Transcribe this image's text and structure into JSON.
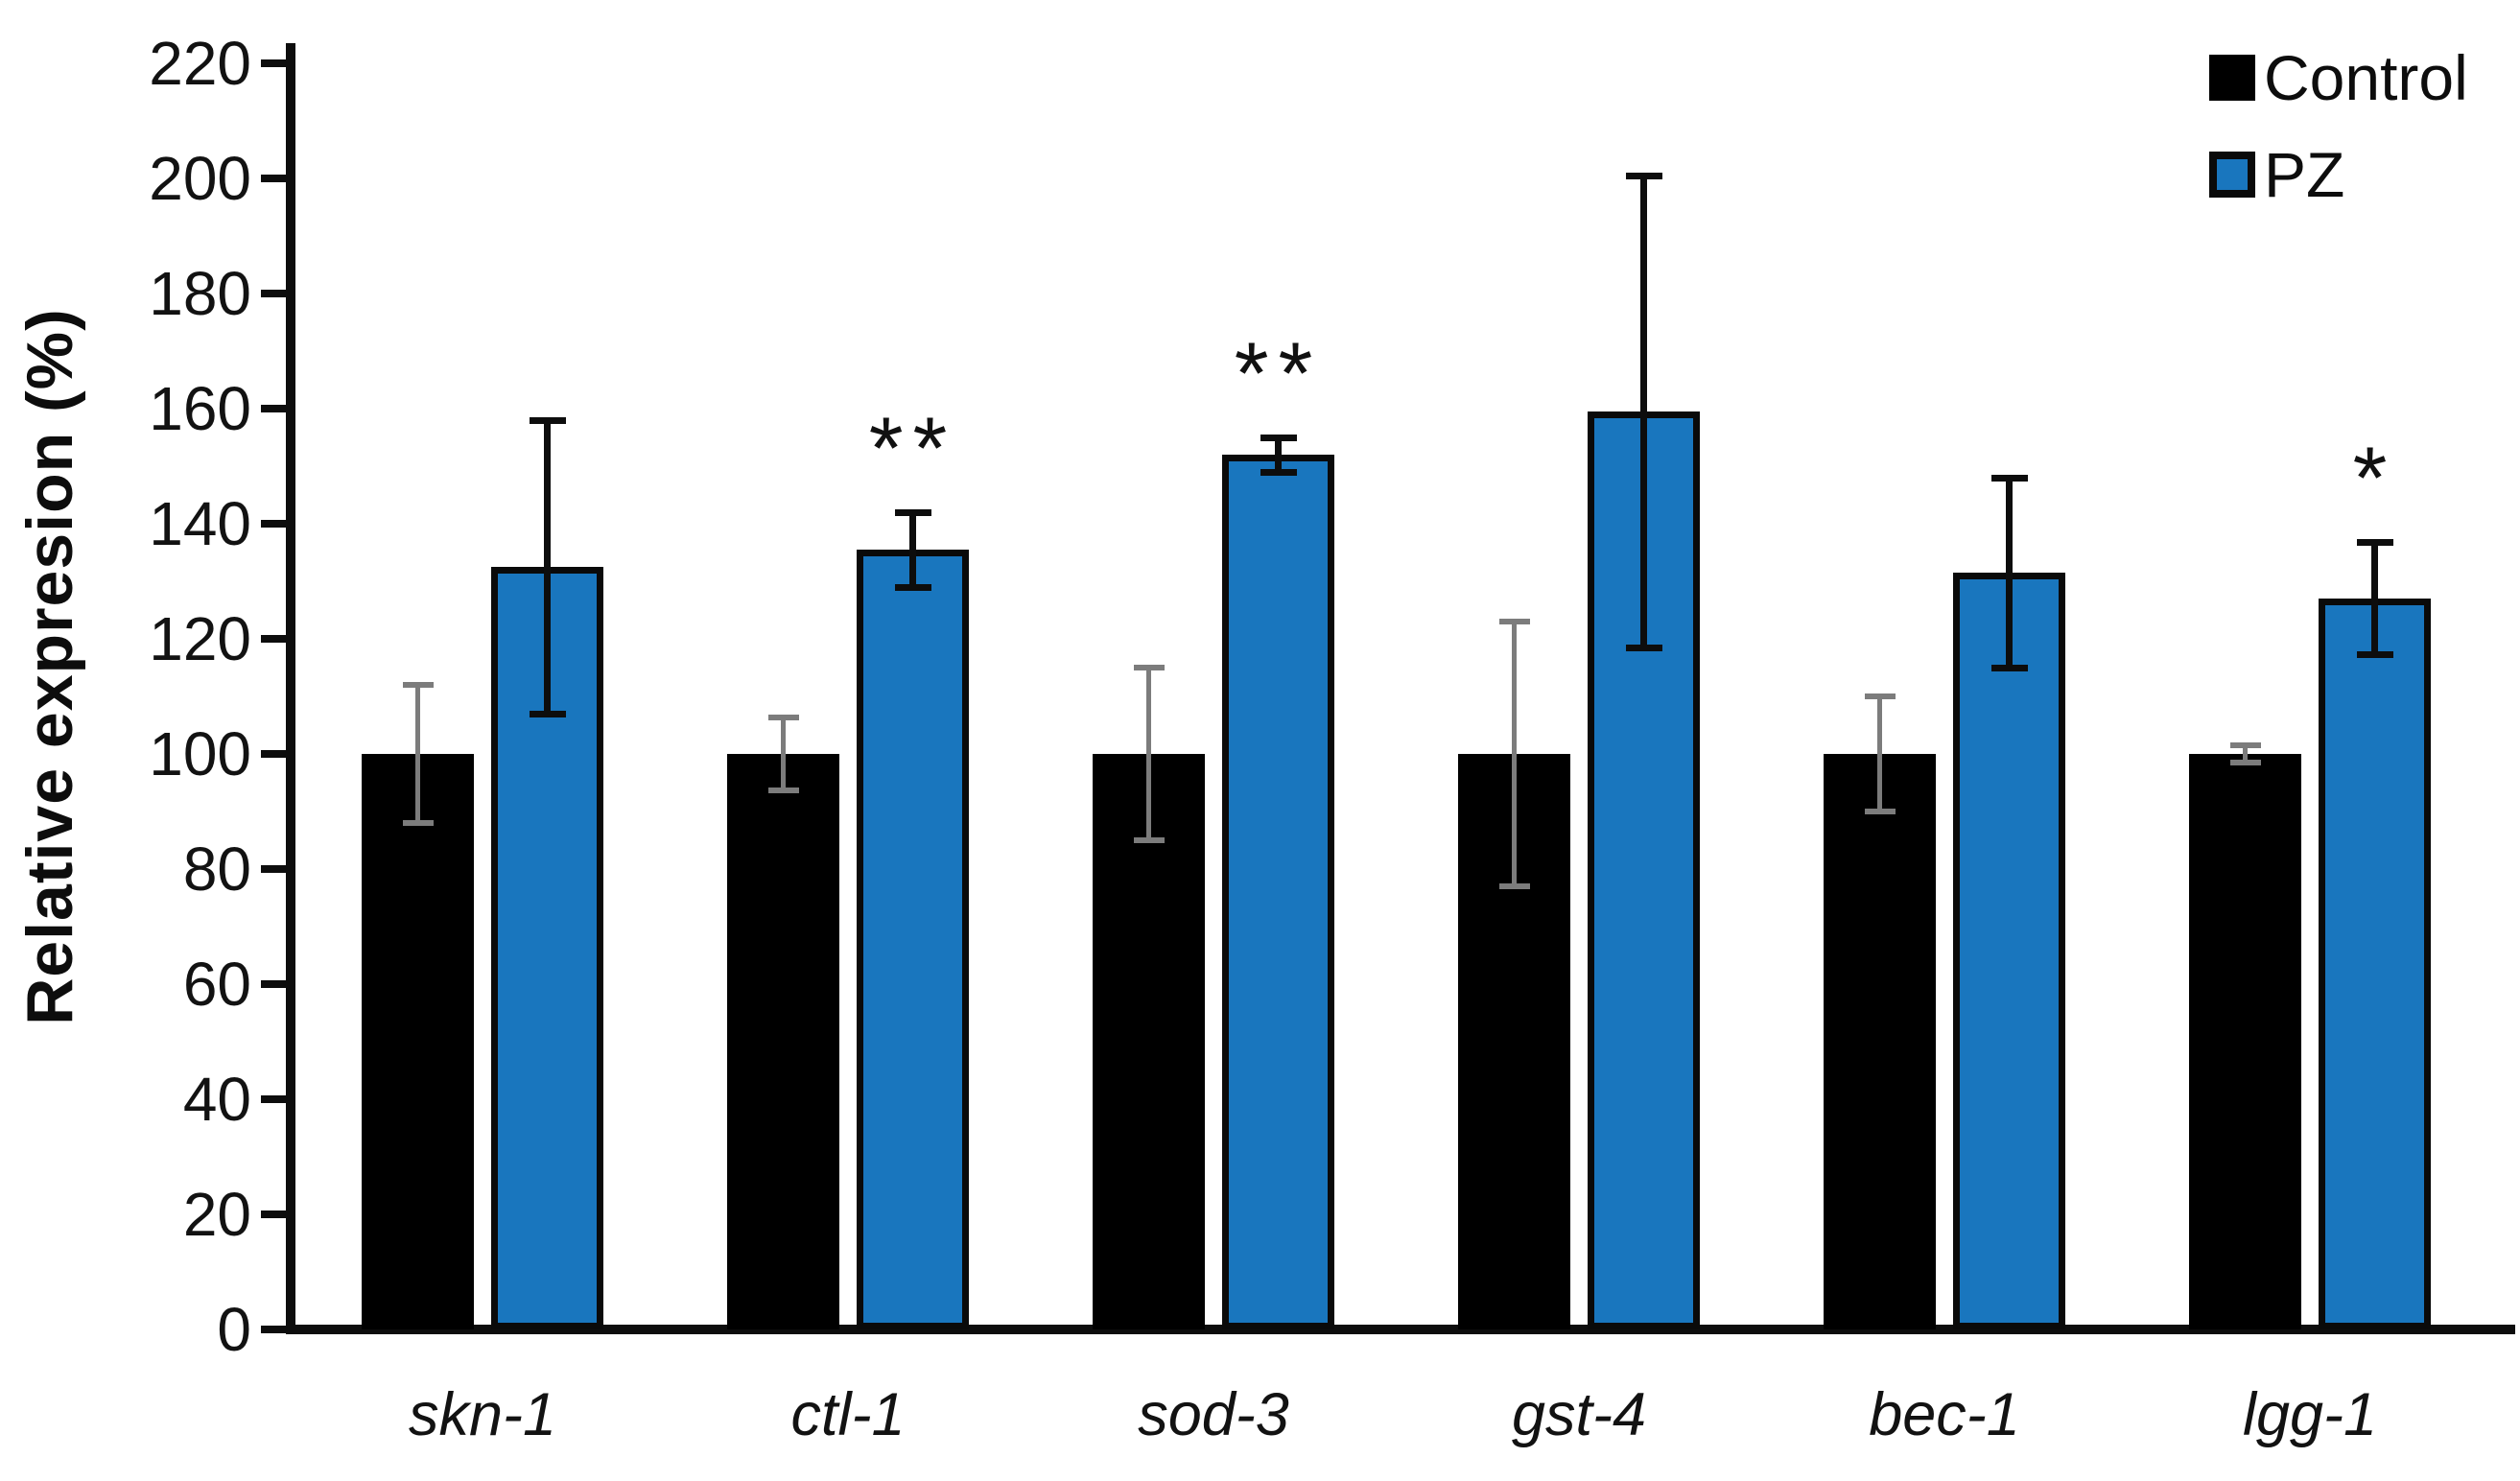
{
  "chart_data": {
    "type": "bar",
    "title": "",
    "ylabel": "Relative expresion (%)",
    "xlabel": "",
    "ylim": [
      0,
      220
    ],
    "ytick_step": 20,
    "yticks": [
      0,
      20,
      40,
      60,
      80,
      100,
      120,
      140,
      160,
      180,
      200,
      220
    ],
    "grid": false,
    "legend_position": "top-right",
    "categories": [
      "skn-1",
      "ctl-1",
      "sod-3",
      "gst-4",
      "bec-1",
      "lgg-1"
    ],
    "series": [
      {
        "name": "Control",
        "color": "#000000",
        "outline_color": "#000000",
        "error_color": "#7c7c7c",
        "values": [
          100,
          100,
          100,
          100,
          100,
          100
        ],
        "errors": [
          12,
          6.3,
          15,
          23,
          10,
          1.5
        ],
        "significance": [
          "",
          "",
          "",
          "",
          "",
          ""
        ]
      },
      {
        "name": "PZ",
        "color": "#1976BE",
        "outline_color": "#0a0a0a",
        "error_color": "#0d0d0d",
        "values": [
          132.5,
          135.5,
          152,
          159.5,
          131.5,
          127
        ],
        "errors": [
          25.5,
          6.5,
          3,
          41,
          16.5,
          9.8
        ],
        "significance": [
          "",
          "**",
          "**",
          "",
          "",
          "*"
        ]
      }
    ]
  }
}
